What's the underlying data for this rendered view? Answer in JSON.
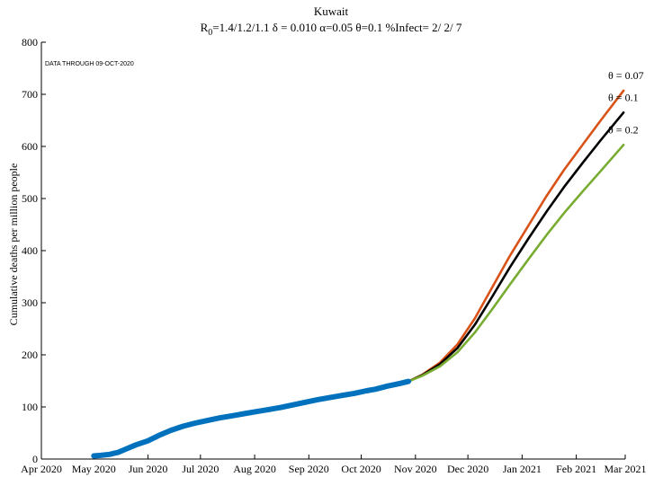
{
  "chart_data": {
    "type": "line",
    "title": "Kuwait",
    "subtitle": {
      "r_label": "R",
      "r_sub": "0",
      "rest": "=1.4/1.2/1.1  δ = 0.010  α=0.05  θ=0.1  %Infect= 2/ 2/ 7"
    },
    "ylabel": "Cumulative deaths per million people",
    "xlabel": "",
    "annotation": "DATA THROUGH 09-OCT-2020",
    "ylim": [
      0,
      800
    ],
    "yticks": [
      0,
      100,
      200,
      300,
      400,
      500,
      600,
      700,
      800
    ],
    "xlim": [
      "2020-04-01",
      "2021-03-01"
    ],
    "xticks": [
      {
        "date": "2020-04-01",
        "label": "Apr 2020"
      },
      {
        "date": "2020-05-01",
        "label": "May 2020"
      },
      {
        "date": "2020-06-01",
        "label": "Jun 2020"
      },
      {
        "date": "2020-07-01",
        "label": "Jul 2020"
      },
      {
        "date": "2020-08-01",
        "label": "Aug 2020"
      },
      {
        "date": "2020-09-01",
        "label": "Sep 2020"
      },
      {
        "date": "2020-10-01",
        "label": "Oct 2020"
      },
      {
        "date": "2020-11-01",
        "label": "Nov 2020"
      },
      {
        "date": "2020-12-01",
        "label": "Dec 2020"
      },
      {
        "date": "2021-01-01",
        "label": "Jan 2021"
      },
      {
        "date": "2021-02-01",
        "label": "Feb 2021"
      },
      {
        "date": "2021-03-01",
        "label": "Mar 2021"
      }
    ],
    "series": [
      {
        "name": "",
        "role": "observed",
        "color": "#0072BD",
        "points": [
          [
            "2020-05-01",
            6
          ],
          [
            "2020-05-05",
            7
          ],
          [
            "2020-05-10",
            9
          ],
          [
            "2020-05-15",
            13
          ],
          [
            "2020-05-20",
            20
          ],
          [
            "2020-05-25",
            27
          ],
          [
            "2020-06-01",
            35
          ],
          [
            "2020-06-07",
            45
          ],
          [
            "2020-06-14",
            55
          ],
          [
            "2020-06-21",
            63
          ],
          [
            "2020-06-28",
            69
          ],
          [
            "2020-07-05",
            74
          ],
          [
            "2020-07-12",
            79
          ],
          [
            "2020-07-19",
            83
          ],
          [
            "2020-07-26",
            87
          ],
          [
            "2020-08-02",
            91
          ],
          [
            "2020-08-09",
            95
          ],
          [
            "2020-08-16",
            99
          ],
          [
            "2020-08-23",
            104
          ],
          [
            "2020-08-30",
            109
          ],
          [
            "2020-09-06",
            114
          ],
          [
            "2020-09-13",
            118
          ],
          [
            "2020-09-20",
            122
          ],
          [
            "2020-09-27",
            126
          ],
          [
            "2020-10-04",
            131
          ],
          [
            "2020-10-09",
            134
          ],
          [
            "2020-10-16",
            140
          ],
          [
            "2020-10-23",
            145
          ],
          [
            "2020-10-28",
            149
          ]
        ]
      },
      {
        "name": "θ = 0.07",
        "role": "projection",
        "color": "#D95319",
        "points": [
          [
            "2020-10-28",
            149
          ],
          [
            "2020-11-05",
            162
          ],
          [
            "2020-11-15",
            185
          ],
          [
            "2020-11-25",
            220
          ],
          [
            "2020-12-05",
            270
          ],
          [
            "2020-12-15",
            330
          ],
          [
            "2020-12-25",
            390
          ],
          [
            "2021-01-05",
            450
          ],
          [
            "2021-01-15",
            505
          ],
          [
            "2021-01-25",
            555
          ],
          [
            "2021-02-05",
            605
          ],
          [
            "2021-02-15",
            650
          ],
          [
            "2021-02-28",
            707
          ]
        ]
      },
      {
        "name": "θ = 0.1",
        "role": "projection",
        "color": "#000000",
        "points": [
          [
            "2020-10-28",
            149
          ],
          [
            "2020-11-05",
            161
          ],
          [
            "2020-11-15",
            182
          ],
          [
            "2020-11-25",
            213
          ],
          [
            "2020-12-05",
            258
          ],
          [
            "2020-12-15",
            312
          ],
          [
            "2020-12-25",
            368
          ],
          [
            "2021-01-05",
            425
          ],
          [
            "2021-01-15",
            475
          ],
          [
            "2021-01-25",
            522
          ],
          [
            "2021-02-05",
            570
          ],
          [
            "2021-02-15",
            612
          ],
          [
            "2021-02-28",
            665
          ]
        ]
      },
      {
        "name": "θ = 0.2",
        "role": "projection",
        "color": "#77AC30",
        "points": [
          [
            "2020-10-28",
            149
          ],
          [
            "2020-11-05",
            160
          ],
          [
            "2020-11-15",
            178
          ],
          [
            "2020-11-25",
            205
          ],
          [
            "2020-12-05",
            243
          ],
          [
            "2020-12-15",
            288
          ],
          [
            "2020-12-25",
            335
          ],
          [
            "2021-01-05",
            385
          ],
          [
            "2021-01-15",
            430
          ],
          [
            "2021-01-25",
            472
          ],
          [
            "2021-02-05",
            515
          ],
          [
            "2021-02-15",
            553
          ],
          [
            "2021-02-28",
            603
          ]
        ]
      }
    ],
    "grid": false,
    "legend": "inline-right"
  }
}
